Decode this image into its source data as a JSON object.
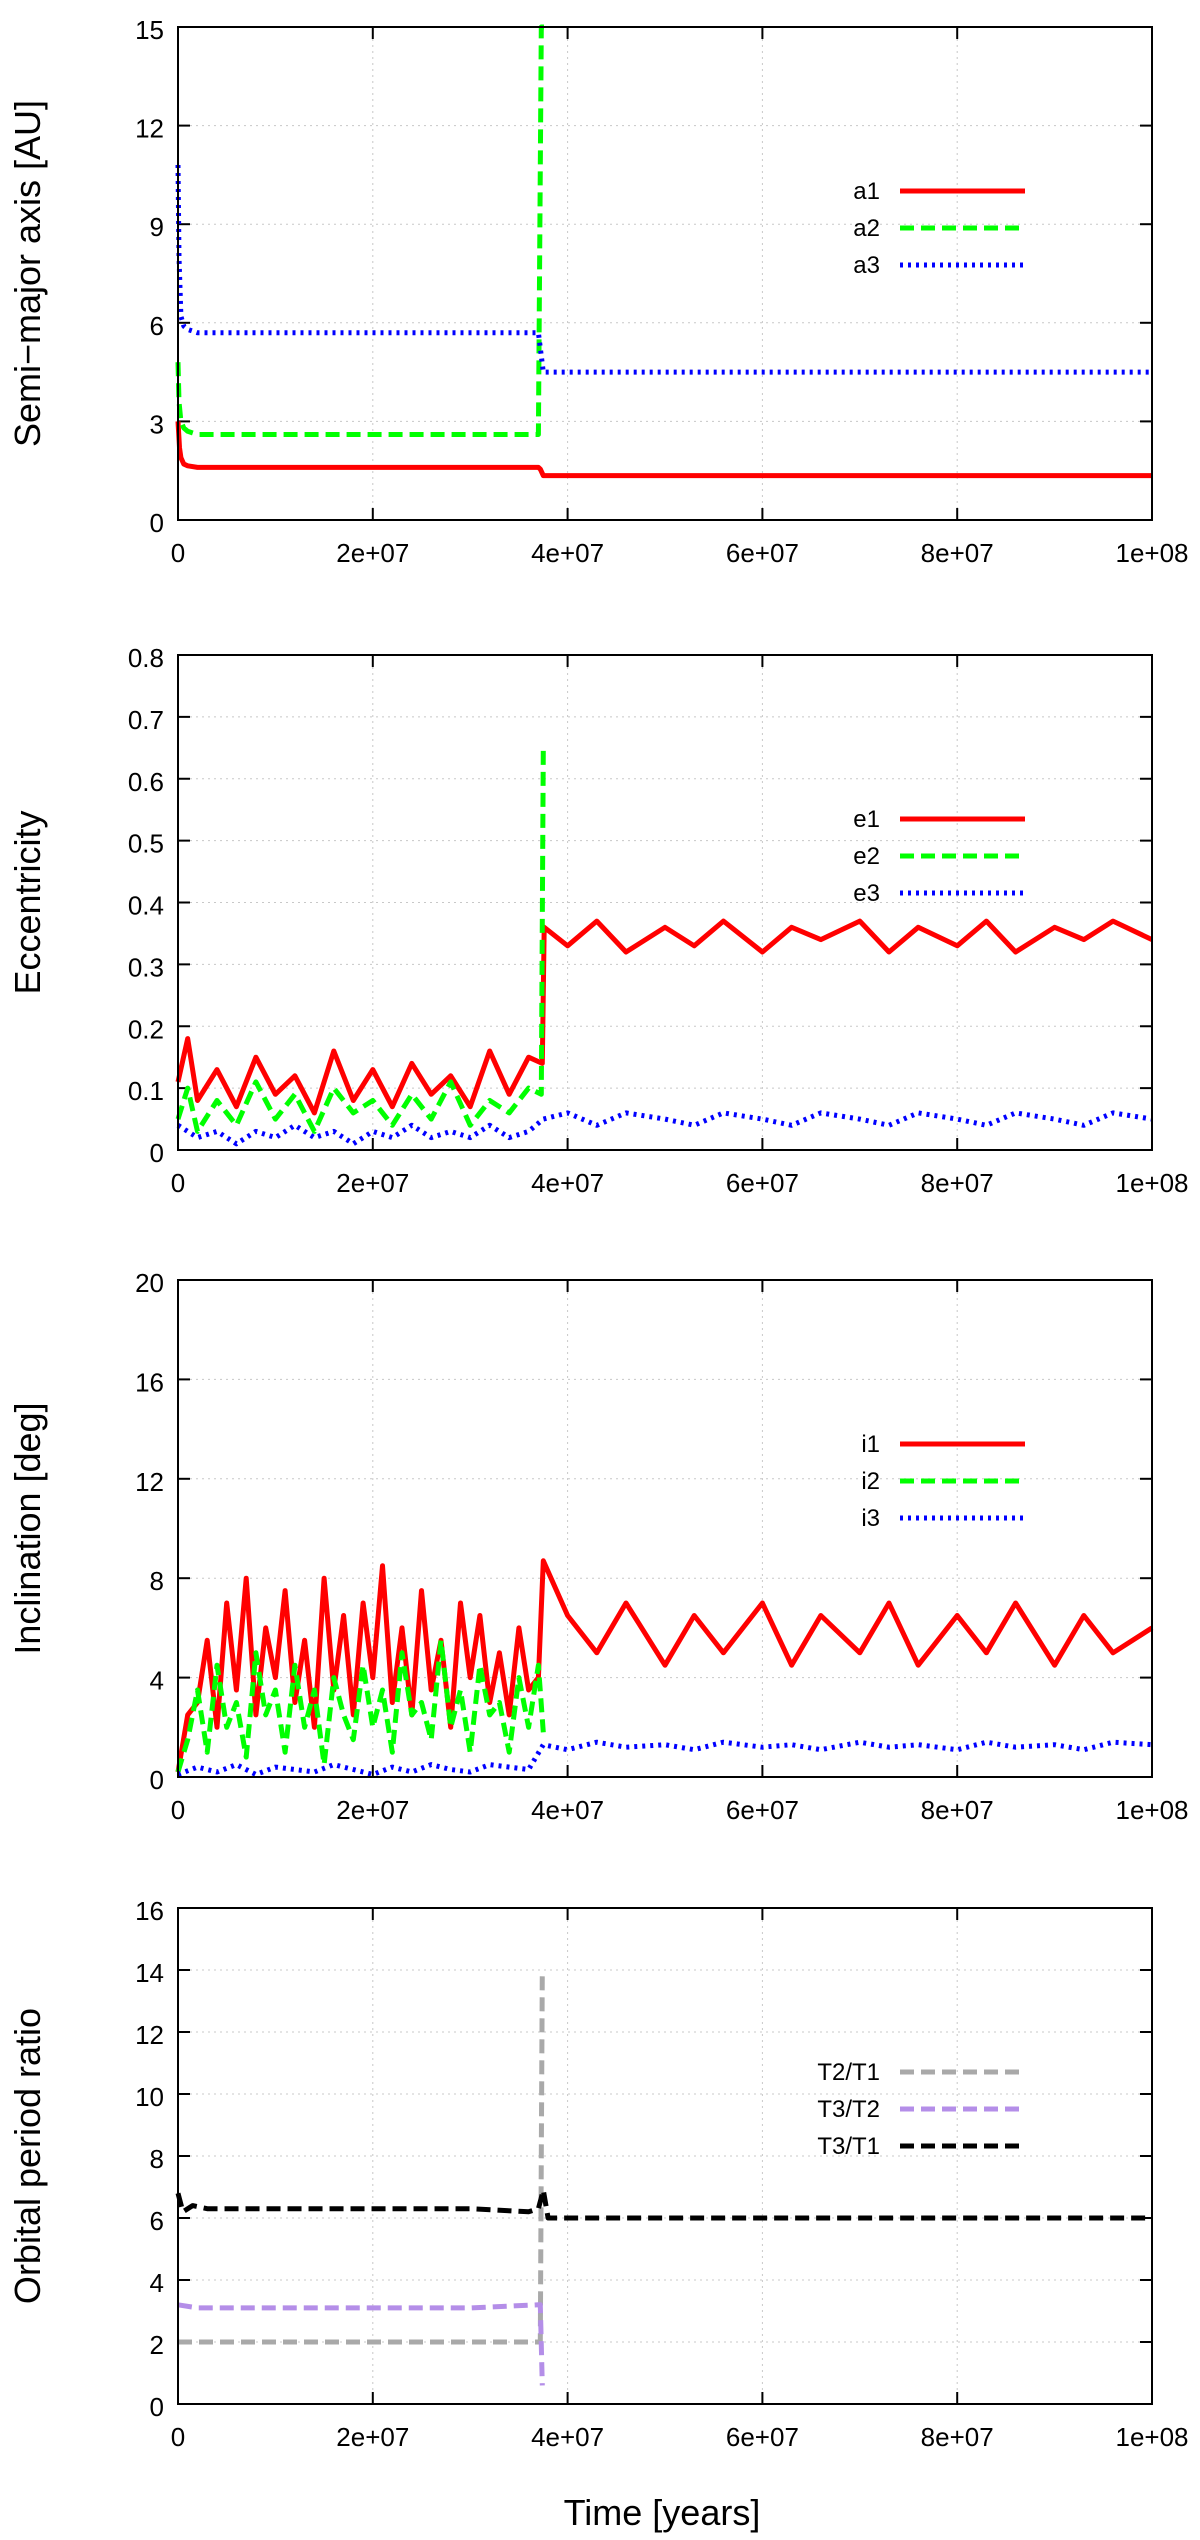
{
  "x_axis_label": "Time [years]",
  "chart_data": [
    {
      "type": "line",
      "ylabel": "Semi−major axis [AU]",
      "xlim": [
        0,
        100000000
      ],
      "ylim": [
        0,
        15
      ],
      "xticks": [
        0,
        20000000,
        40000000,
        60000000,
        80000000,
        100000000
      ],
      "xtick_labels": [
        "0",
        "2e+07",
        "4e+07",
        "6e+07",
        "8e+07",
        "1e+08"
      ],
      "yticks": [
        0,
        3,
        6,
        9,
        12,
        15
      ],
      "ytick_labels": [
        "0",
        "3",
        "6",
        "9",
        "12",
        "15"
      ],
      "grid": true,
      "legend_position": "top-right",
      "series": [
        {
          "name": "a1",
          "color": "#ff0000",
          "dash": "solid",
          "x": [
            0,
            150000,
            300000,
            600000,
            1000000,
            2000000,
            10000000,
            20000000,
            30000000,
            37000000,
            37200000,
            37500000,
            50000000,
            70000000,
            100000000
          ],
          "y": [
            3.0,
            2.2,
            1.9,
            1.7,
            1.65,
            1.6,
            1.6,
            1.6,
            1.6,
            1.6,
            1.55,
            1.35,
            1.35,
            1.35,
            1.35
          ]
        },
        {
          "name": "a2",
          "color": "#00ff00",
          "dash": "dashed",
          "x": [
            0,
            100000,
            300000,
            600000,
            1000000,
            2000000,
            10000000,
            20000000,
            30000000,
            37000000,
            37300000,
            37500000,
            37700000
          ],
          "y": [
            4.8,
            3.6,
            3.0,
            2.8,
            2.7,
            2.6,
            2.6,
            2.6,
            2.6,
            2.6,
            15.0,
            15.0,
            15.0
          ]
        },
        {
          "name": "a3",
          "color": "#0000ff",
          "dash": "dotted",
          "x": [
            0,
            100000,
            300000,
            600000,
            1000000,
            2000000,
            10000000,
            20000000,
            30000000,
            37000000,
            37500000,
            50000000,
            70000000,
            100000000
          ],
          "y": [
            10.8,
            8.0,
            6.2,
            5.9,
            5.8,
            5.7,
            5.7,
            5.7,
            5.7,
            5.7,
            4.5,
            4.5,
            4.5,
            4.5
          ]
        }
      ]
    },
    {
      "type": "line",
      "ylabel": "Eccentricity",
      "xlim": [
        0,
        100000000
      ],
      "ylim": [
        0,
        0.8
      ],
      "xticks": [
        0,
        20000000,
        40000000,
        60000000,
        80000000,
        100000000
      ],
      "xtick_labels": [
        "0",
        "2e+07",
        "4e+07",
        "6e+07",
        "8e+07",
        "1e+08"
      ],
      "yticks": [
        0,
        0.1,
        0.2,
        0.3,
        0.4,
        0.5,
        0.6,
        0.7,
        0.8
      ],
      "ytick_labels": [
        "0",
        "0.1",
        "0.2",
        "0.3",
        "0.4",
        "0.5",
        "0.6",
        "0.7",
        "0.8"
      ],
      "grid": true,
      "legend_position": "top-right",
      "series": [
        {
          "name": "e1",
          "color": "#ff0000",
          "dash": "solid",
          "x": [
            0,
            1000000,
            2000000,
            4000000,
            6000000,
            8000000,
            10000000,
            12000000,
            14000000,
            16000000,
            18000000,
            20000000,
            22000000,
            24000000,
            26000000,
            28000000,
            30000000,
            32000000,
            34000000,
            36000000,
            37400000,
            37600000,
            40000000,
            43000000,
            46000000,
            50000000,
            53000000,
            56000000,
            60000000,
            63000000,
            66000000,
            70000000,
            73000000,
            76000000,
            80000000,
            83000000,
            86000000,
            90000000,
            93000000,
            96000000,
            100000000
          ],
          "y": [
            0.11,
            0.18,
            0.08,
            0.13,
            0.07,
            0.15,
            0.09,
            0.12,
            0.06,
            0.16,
            0.08,
            0.13,
            0.07,
            0.14,
            0.09,
            0.12,
            0.07,
            0.16,
            0.09,
            0.15,
            0.14,
            0.36,
            0.33,
            0.37,
            0.32,
            0.36,
            0.33,
            0.37,
            0.32,
            0.36,
            0.34,
            0.37,
            0.32,
            0.36,
            0.33,
            0.37,
            0.32,
            0.36,
            0.34,
            0.37,
            0.34
          ]
        },
        {
          "name": "e2",
          "color": "#00ff00",
          "dash": "dashed",
          "x": [
            0,
            1000000,
            2000000,
            4000000,
            6000000,
            8000000,
            10000000,
            12000000,
            14000000,
            16000000,
            18000000,
            20000000,
            22000000,
            24000000,
            26000000,
            28000000,
            30000000,
            32000000,
            34000000,
            36000000,
            37300000,
            37500000
          ],
          "y": [
            0.05,
            0.1,
            0.03,
            0.08,
            0.04,
            0.11,
            0.05,
            0.09,
            0.03,
            0.1,
            0.06,
            0.08,
            0.04,
            0.09,
            0.05,
            0.11,
            0.04,
            0.08,
            0.06,
            0.1,
            0.09,
            0.65
          ]
        },
        {
          "name": "e3",
          "color": "#0000ff",
          "dash": "dotted",
          "x": [
            0,
            2000000,
            4000000,
            6000000,
            8000000,
            10000000,
            12000000,
            14000000,
            16000000,
            18000000,
            20000000,
            22000000,
            24000000,
            26000000,
            28000000,
            30000000,
            32000000,
            34000000,
            36000000,
            37500000,
            40000000,
            43000000,
            46000000,
            50000000,
            53000000,
            56000000,
            60000000,
            63000000,
            66000000,
            70000000,
            73000000,
            76000000,
            80000000,
            83000000,
            86000000,
            90000000,
            93000000,
            96000000,
            100000000
          ],
          "y": [
            0.04,
            0.02,
            0.03,
            0.01,
            0.03,
            0.02,
            0.04,
            0.02,
            0.03,
            0.01,
            0.03,
            0.02,
            0.04,
            0.02,
            0.03,
            0.02,
            0.04,
            0.02,
            0.03,
            0.05,
            0.06,
            0.04,
            0.06,
            0.05,
            0.04,
            0.06,
            0.05,
            0.04,
            0.06,
            0.05,
            0.04,
            0.06,
            0.05,
            0.04,
            0.06,
            0.05,
            0.04,
            0.06,
            0.05
          ]
        }
      ]
    },
    {
      "type": "line",
      "ylabel": "Inclination [deg]",
      "xlim": [
        0,
        100000000
      ],
      "ylim": [
        0,
        20
      ],
      "xticks": [
        0,
        20000000,
        40000000,
        60000000,
        80000000,
        100000000
      ],
      "xtick_labels": [
        "0",
        "2e+07",
        "4e+07",
        "6e+07",
        "8e+07",
        "1e+08"
      ],
      "yticks": [
        0,
        4,
        8,
        12,
        16,
        20
      ],
      "ytick_labels": [
        "0",
        "4",
        "8",
        "12",
        "16",
        "20"
      ],
      "grid": true,
      "legend_position": "top-right",
      "series": [
        {
          "name": "i1",
          "color": "#ff0000",
          "dash": "solid",
          "x": [
            0,
            1000000,
            2000000,
            3000000,
            4000000,
            5000000,
            6000000,
            7000000,
            8000000,
            9000000,
            10000000,
            11000000,
            12000000,
            13000000,
            14000000,
            15000000,
            16000000,
            17000000,
            18000000,
            19000000,
            20000000,
            21000000,
            22000000,
            23000000,
            24000000,
            25000000,
            26000000,
            27000000,
            28000000,
            29000000,
            30000000,
            31000000,
            32000000,
            33000000,
            34000000,
            35000000,
            36000000,
            37000000,
            37500000,
            40000000,
            43000000,
            46000000,
            50000000,
            53000000,
            56000000,
            60000000,
            63000000,
            66000000,
            70000000,
            73000000,
            76000000,
            80000000,
            83000000,
            86000000,
            90000000,
            93000000,
            96000000,
            100000000
          ],
          "y": [
            0.2,
            2.5,
            3.0,
            5.5,
            2.0,
            7.0,
            3.5,
            8.0,
            2.5,
            6.0,
            4.0,
            7.5,
            3.0,
            5.5,
            2.0,
            8.0,
            3.5,
            6.5,
            2.5,
            7.0,
            4.0,
            8.5,
            3.0,
            6.0,
            2.5,
            7.5,
            3.5,
            5.5,
            2.0,
            7.0,
            4.0,
            6.5,
            3.0,
            5.0,
            2.5,
            6.0,
            3.5,
            4.0,
            8.7,
            6.5,
            5.0,
            7.0,
            4.5,
            6.5,
            5.0,
            7.0,
            4.5,
            6.5,
            5.0,
            7.0,
            4.5,
            6.5,
            5.0,
            7.0,
            4.5,
            6.5,
            5.0,
            6.0
          ]
        },
        {
          "name": "i2",
          "color": "#00ff00",
          "dash": "dashed",
          "x": [
            0,
            1000000,
            2000000,
            3000000,
            4000000,
            5000000,
            6000000,
            7000000,
            8000000,
            9000000,
            10000000,
            11000000,
            12000000,
            13000000,
            14000000,
            15000000,
            16000000,
            17000000,
            18000000,
            19000000,
            20000000,
            21000000,
            22000000,
            23000000,
            24000000,
            25000000,
            26000000,
            27000000,
            28000000,
            29000000,
            30000000,
            31000000,
            32000000,
            33000000,
            34000000,
            35000000,
            36000000,
            37000000,
            37500000
          ],
          "y": [
            0.2,
            1.5,
            3.5,
            1.0,
            4.5,
            2.0,
            3.0,
            0.8,
            5.0,
            2.5,
            3.5,
            1.0,
            4.5,
            2.0,
            3.5,
            0.5,
            4.0,
            2.5,
            1.5,
            4.5,
            2.0,
            3.5,
            1.0,
            5.0,
            2.5,
            3.0,
            1.5,
            5.5,
            2.0,
            3.5,
            1.0,
            4.5,
            2.5,
            3.0,
            1.0,
            4.0,
            2.0,
            4.5,
            1.8
          ]
        },
        {
          "name": "i3",
          "color": "#0000ff",
          "dash": "dotted",
          "x": [
            0,
            2000000,
            4000000,
            6000000,
            8000000,
            10000000,
            12000000,
            14000000,
            16000000,
            18000000,
            20000000,
            22000000,
            24000000,
            26000000,
            28000000,
            30000000,
            32000000,
            34000000,
            36000000,
            37500000,
            40000000,
            43000000,
            46000000,
            50000000,
            53000000,
            56000000,
            60000000,
            63000000,
            66000000,
            70000000,
            73000000,
            76000000,
            80000000,
            83000000,
            86000000,
            90000000,
            93000000,
            96000000,
            100000000
          ],
          "y": [
            0.1,
            0.4,
            0.2,
            0.5,
            0.1,
            0.4,
            0.3,
            0.2,
            0.5,
            0.3,
            0.1,
            0.4,
            0.2,
            0.5,
            0.3,
            0.2,
            0.5,
            0.4,
            0.3,
            1.3,
            1.1,
            1.4,
            1.2,
            1.3,
            1.1,
            1.4,
            1.2,
            1.3,
            1.1,
            1.4,
            1.2,
            1.3,
            1.1,
            1.4,
            1.2,
            1.3,
            1.1,
            1.4,
            1.3
          ]
        }
      ]
    },
    {
      "type": "line",
      "ylabel": "Orbital period ratio",
      "xlim": [
        0,
        100000000
      ],
      "ylim": [
        0,
        16
      ],
      "xticks": [
        0,
        20000000,
        40000000,
        60000000,
        80000000,
        100000000
      ],
      "xtick_labels": [
        "0",
        "2e+07",
        "4e+07",
        "6e+07",
        "8e+07",
        "1e+08"
      ],
      "yticks": [
        0,
        2,
        4,
        6,
        8,
        10,
        12,
        14,
        16
      ],
      "ytick_labels": [
        "0",
        "2",
        "4",
        "6",
        "8",
        "10",
        "12",
        "14",
        "16"
      ],
      "grid": true,
      "legend_position": "top-right",
      "series": [
        {
          "name": "T2/T1",
          "color": "#a9a9a9",
          "dash": "dashed",
          "x": [
            0,
            2000000,
            10000000,
            20000000,
            30000000,
            37000000,
            37200000,
            37400000
          ],
          "y": [
            2.0,
            2.0,
            2.0,
            2.0,
            2.0,
            2.0,
            2.0,
            14.0
          ]
        },
        {
          "name": "T3/T2",
          "color": "#b48ee8",
          "dash": "dashed",
          "x": [
            0,
            2000000,
            10000000,
            20000000,
            30000000,
            37000000,
            37200000,
            37400000
          ],
          "y": [
            3.2,
            3.1,
            3.1,
            3.1,
            3.1,
            3.2,
            3.2,
            0.6
          ]
        },
        {
          "name": "T3/T1",
          "color": "#000000",
          "dash": "dashed",
          "x": [
            0,
            500000,
            1500000,
            3000000,
            10000000,
            20000000,
            30000000,
            36000000,
            37000000,
            37500000,
            38000000,
            50000000,
            70000000,
            100000000
          ],
          "y": [
            6.8,
            6.2,
            6.4,
            6.3,
            6.3,
            6.3,
            6.3,
            6.2,
            6.3,
            6.9,
            6.0,
            6.0,
            6.0,
            6.0
          ]
        }
      ]
    }
  ]
}
